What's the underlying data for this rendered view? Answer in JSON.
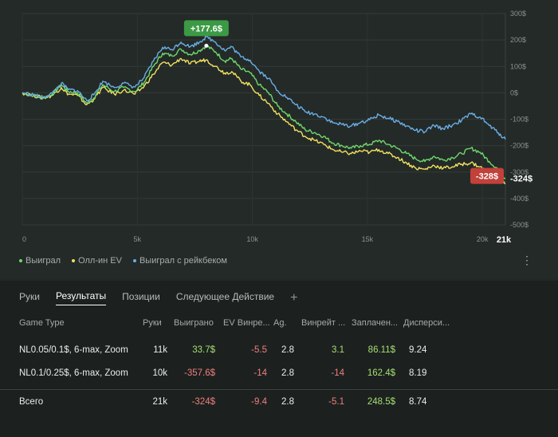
{
  "chart_data": {
    "type": "line",
    "x_ticks": [
      "0",
      "5k",
      "10k",
      "15k",
      "20k"
    ],
    "x_last_label": "21k",
    "xlim": [
      0,
      21000
    ],
    "y_ticks": [
      "300$",
      "200$",
      "100$",
      "0$",
      "-100$",
      "-200$",
      "-300$",
      "-400$",
      "-500$"
    ],
    "ylim": [
      -500,
      300
    ],
    "grid": true,
    "legend_position": "bottom-left",
    "series": [
      {
        "name": "Выиграл",
        "color": "#6fd86a",
        "x": [
          0,
          500,
          900,
          1300,
          1700,
          2000,
          2400,
          2800,
          3100,
          3500,
          4000,
          4400,
          4900,
          5300,
          5700,
          6100,
          6500,
          6900,
          7300,
          7700,
          8000,
          8400,
          8800,
          9100,
          9500,
          9900,
          10300,
          10700,
          11100,
          11500,
          11900,
          12300,
          12700,
          13100,
          13500,
          13900,
          14300,
          14700,
          15100,
          15500,
          15900,
          16300,
          16700,
          17100,
          17500,
          17900,
          18300,
          18700,
          19100,
          19500,
          19900,
          20300,
          20700,
          21000
        ],
        "y": [
          0,
          -10,
          -20,
          -5,
          30,
          5,
          0,
          -40,
          -20,
          30,
          5,
          20,
          5,
          40,
          100,
          150,
          140,
          165,
          145,
          160,
          178,
          155,
          120,
          130,
          90,
          75,
          30,
          0,
          -50,
          -80,
          -110,
          -140,
          -150,
          -165,
          -190,
          -200,
          -210,
          -200,
          -195,
          -180,
          -195,
          -210,
          -230,
          -250,
          -260,
          -240,
          -255,
          -245,
          -230,
          -210,
          -225,
          -260,
          -290,
          -324
        ]
      },
      {
        "name": "Олл-ин EV",
        "color": "#f1e15d",
        "x": [
          0,
          500,
          900,
          1300,
          1700,
          2000,
          2400,
          2800,
          3100,
          3500,
          4000,
          4400,
          4900,
          5300,
          5700,
          6100,
          6500,
          6900,
          7300,
          7700,
          8000,
          8400,
          8800,
          9100,
          9500,
          9900,
          10300,
          10700,
          11100,
          11500,
          11900,
          12300,
          12700,
          13100,
          13500,
          13900,
          14300,
          14700,
          15100,
          15500,
          15900,
          16300,
          16700,
          17100,
          17500,
          17900,
          18300,
          18700,
          19100,
          19500,
          19900,
          20300,
          20700,
          21000
        ],
        "y": [
          0,
          -10,
          -20,
          -10,
          20,
          -5,
          -10,
          -45,
          -25,
          20,
          -5,
          10,
          -5,
          25,
          70,
          115,
          105,
          130,
          110,
          120,
          125,
          100,
          75,
          80,
          45,
          30,
          -10,
          -40,
          -80,
          -110,
          -140,
          -165,
          -180,
          -195,
          -215,
          -225,
          -230,
          -220,
          -225,
          -215,
          -230,
          -245,
          -265,
          -285,
          -290,
          -275,
          -285,
          -280,
          -270,
          -265,
          -280,
          -305,
          -325,
          -345
        ]
      },
      {
        "name": "Выиграл с рейкбеком",
        "color": "#6aaee5",
        "x": [
          0,
          500,
          900,
          1300,
          1700,
          2000,
          2400,
          2800,
          3100,
          3500,
          4000,
          4400,
          4900,
          5300,
          5700,
          6100,
          6500,
          6900,
          7300,
          7700,
          8000,
          8400,
          8800,
          9100,
          9500,
          9900,
          10300,
          10700,
          11100,
          11500,
          11900,
          12300,
          12700,
          13100,
          13500,
          13900,
          14300,
          14700,
          15100,
          15500,
          15900,
          16300,
          16700,
          17100,
          17500,
          17900,
          18300,
          18700,
          19100,
          19500,
          19900,
          20300,
          20700,
          21000
        ],
        "y": [
          0,
          -8,
          -18,
          -2,
          36,
          12,
          8,
          -30,
          -8,
          44,
          20,
          36,
          22,
          58,
          120,
          172,
          164,
          192,
          174,
          192,
          212,
          192,
          160,
          174,
          136,
          124,
          82,
          55,
          8,
          -18,
          -45,
          -72,
          -80,
          -92,
          -114,
          -120,
          -126,
          -112,
          -102,
          -84,
          -96,
          -108,
          -126,
          -142,
          -148,
          -124,
          -136,
          -122,
          -104,
          -80,
          -92,
          -124,
          -152,
          -176
        ]
      }
    ],
    "annotations": {
      "peak_label": "+177.6$",
      "end_label": "-324$",
      "min_label": "-328$"
    }
  },
  "table": {
    "tabs": [
      "Руки",
      "Результаты",
      "Позиции",
      "Следующее Действие"
    ],
    "active_tab": "Результаты",
    "add_tab": "+",
    "headers": [
      "Game Type",
      "Руки",
      "Выиграно",
      "EV Винре...",
      "Ag.",
      "Винрейт ...",
      "Заплачен...",
      "Дисперси..."
    ],
    "rows": [
      [
        "NL0.05/0.1$, 6-max, Zoom",
        "11k",
        "33.7$",
        "-5.5",
        "2.8",
        "3.1",
        "86.11$",
        "9.24"
      ],
      [
        "NL0.1/0.25$, 6-max, Zoom",
        "10k",
        "-357.6$",
        "-14",
        "2.8",
        "-14",
        "162.4$",
        "8.19"
      ]
    ],
    "total": [
      "Всего",
      "21k",
      "-324$",
      "-9.4",
      "2.8",
      "-5.1",
      "248.5$",
      "8.74"
    ]
  },
  "colors": {
    "positive": "#a8df72",
    "negative": "#f07f7a",
    "peak_badge": "#3c9a45",
    "min_badge": "#c2413b"
  },
  "icons": {
    "more": "more-vertical-icon"
  }
}
